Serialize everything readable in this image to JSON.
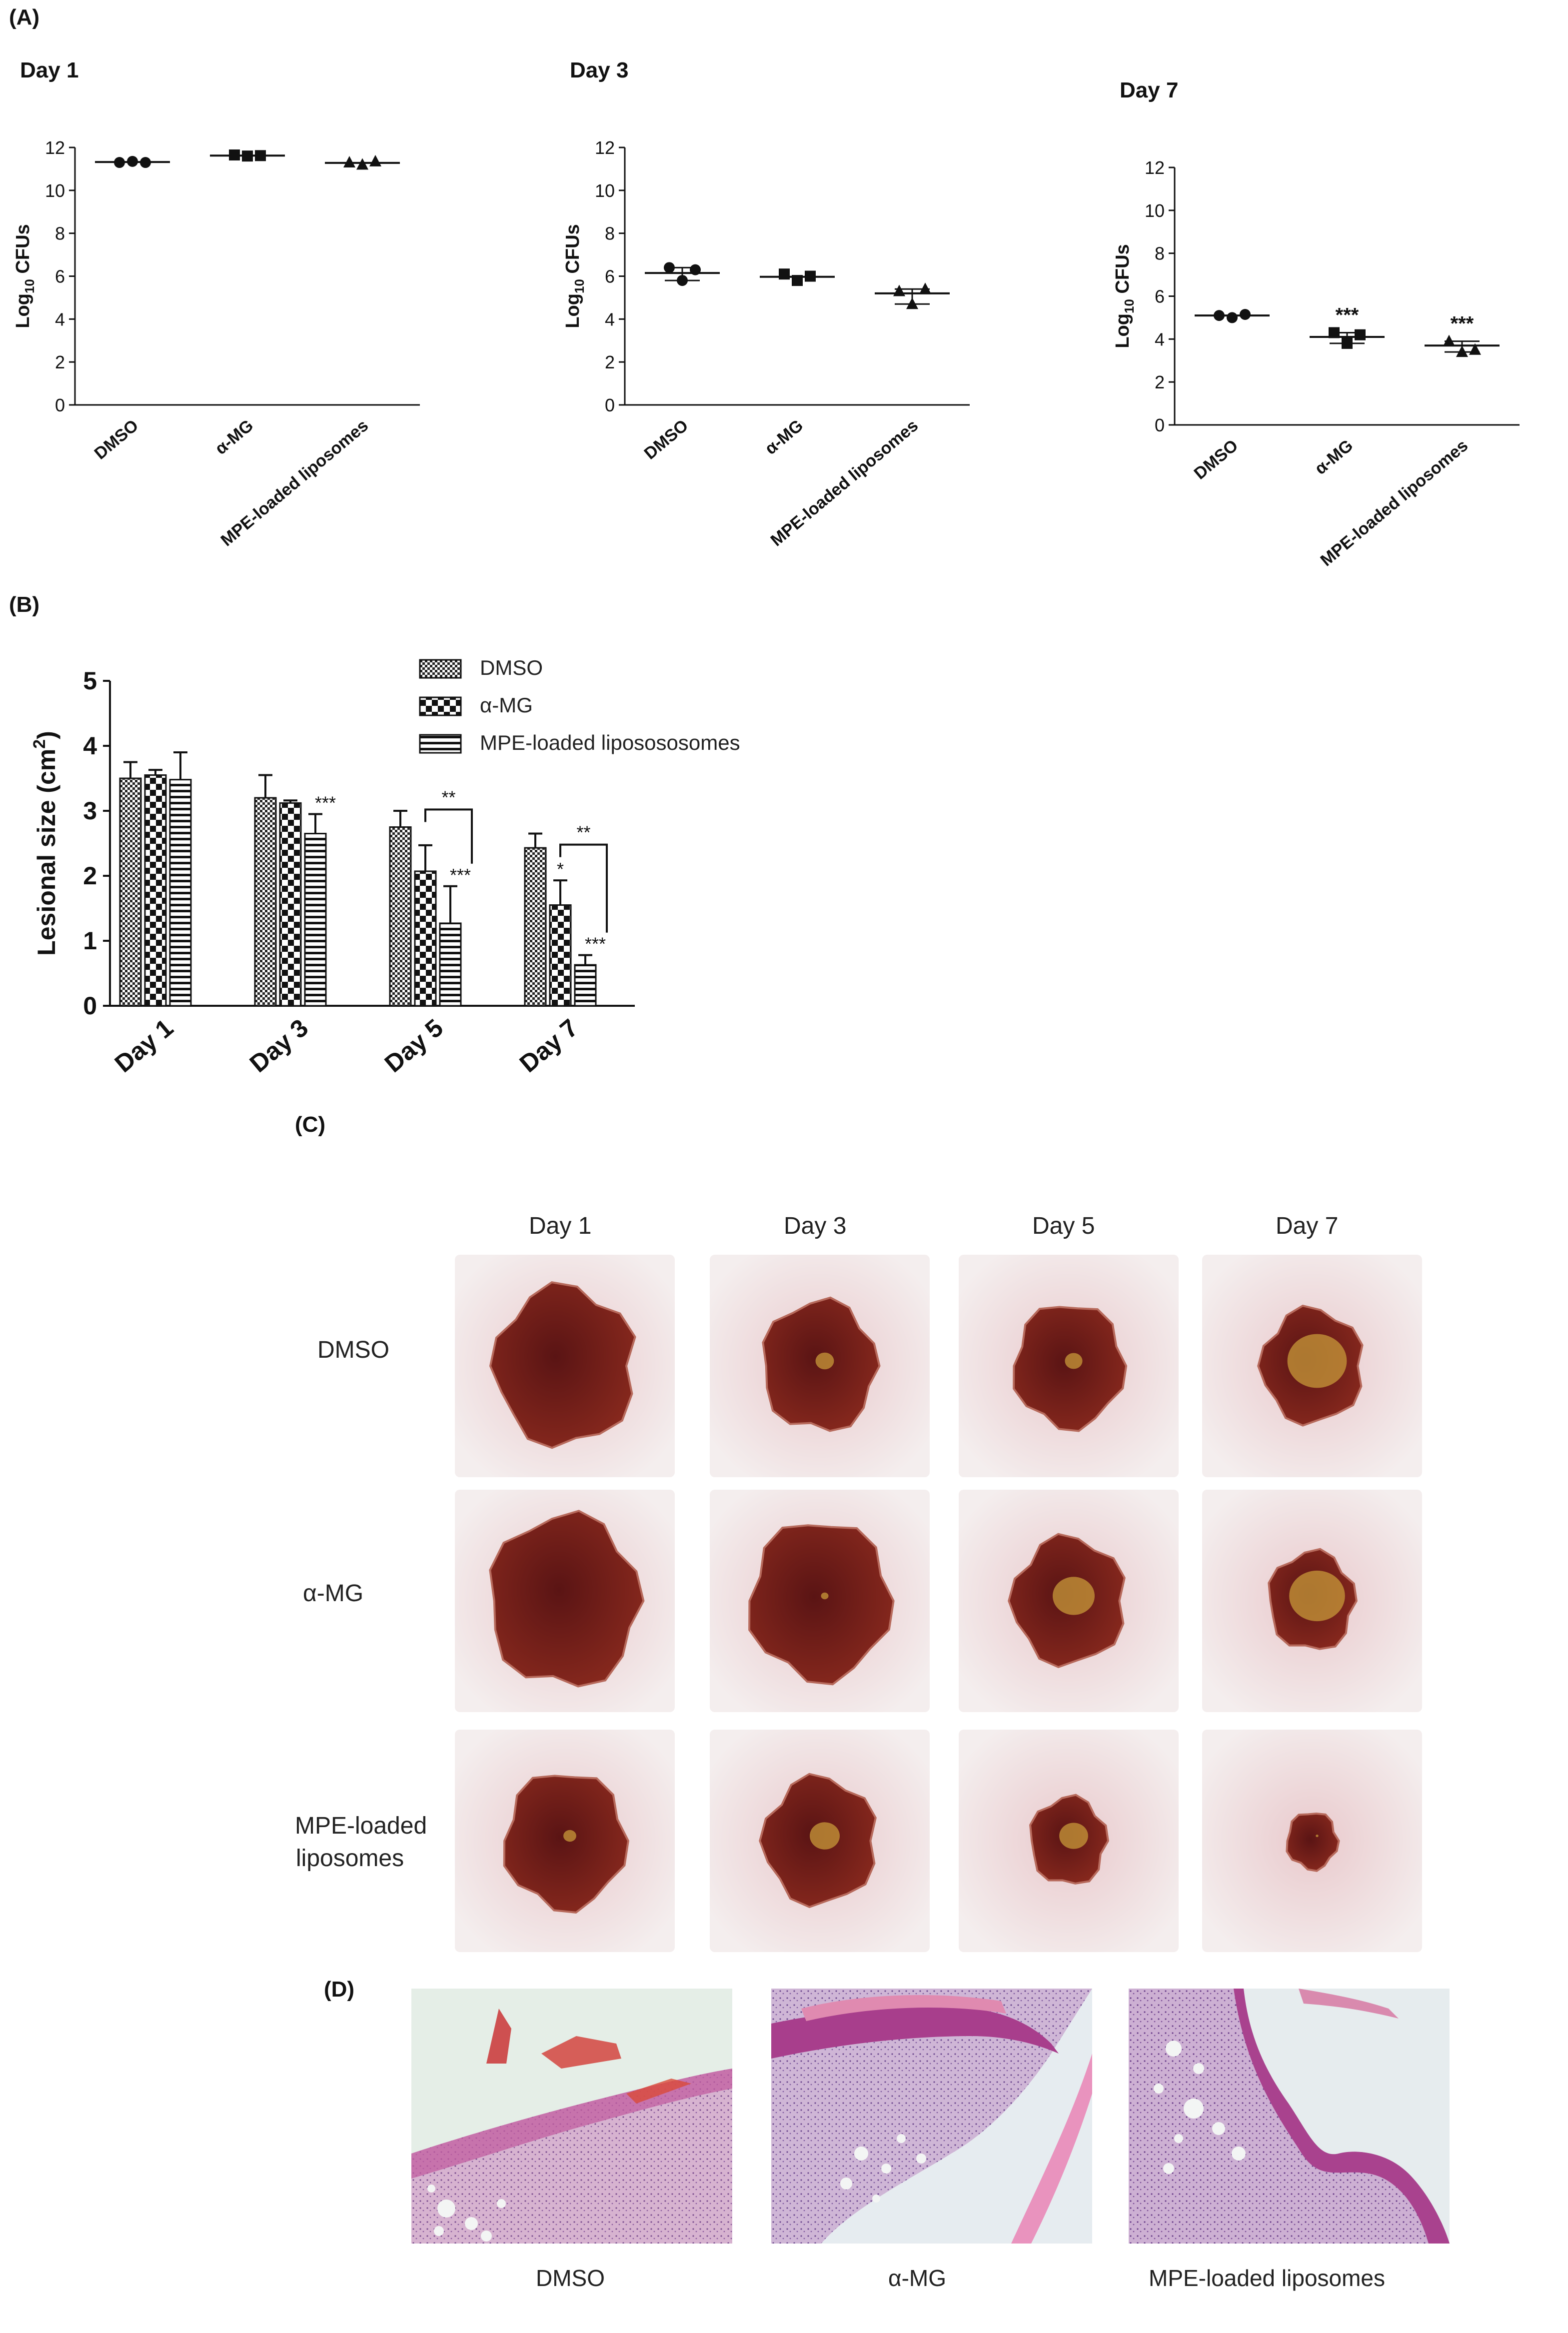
{
  "panels": {
    "a_label": "(A)",
    "b_label": "(B)",
    "c_label": "(C)",
    "d_label": "(D)"
  },
  "chart_data": [
    {
      "type": "scatter",
      "title": "Day 1",
      "xlabel": "",
      "ylabel_main": "Log",
      "ylabel_sub": "10",
      "ylabel_tail": " CFUs",
      "categories": [
        "DMSO",
        "α-MG",
        "MPE-loaded liposomes"
      ],
      "markers": [
        "circle",
        "square",
        "triangle"
      ],
      "series": [
        {
          "name": "DMSO",
          "points": [
            11.3,
            11.35,
            11.3
          ],
          "mean": 11.32
        },
        {
          "name": "α-MG",
          "points": [
            11.65,
            11.6,
            11.62
          ],
          "mean": 11.62
        },
        {
          "name": "MPE-loaded liposomes",
          "points": [
            11.3,
            11.2,
            11.35
          ],
          "mean": 11.28
        }
      ],
      "significance": [
        "",
        "",
        ""
      ],
      "ylim": [
        0,
        12
      ],
      "yticks": [
        0,
        2,
        4,
        6,
        8,
        10,
        12
      ]
    },
    {
      "type": "scatter",
      "title": "Day 3",
      "xlabel": "",
      "ylabel_main": "Log",
      "ylabel_sub": "10",
      "ylabel_tail": " CFUs",
      "categories": [
        "DMSO",
        "α-MG",
        "MPE-loaded liposomes"
      ],
      "markers": [
        "circle",
        "square",
        "triangle"
      ],
      "series": [
        {
          "name": "DMSO",
          "points": [
            6.4,
            5.8,
            6.3
          ],
          "mean": 6.15
        },
        {
          "name": "α-MG",
          "points": [
            6.1,
            5.8,
            6.0
          ],
          "mean": 5.97
        },
        {
          "name": "MPE-loaded liposomes",
          "points": [
            5.3,
            4.7,
            5.4
          ],
          "mean": 5.2
        }
      ],
      "significance": [
        "",
        "",
        ""
      ],
      "ylim": [
        0,
        12
      ],
      "yticks": [
        0,
        2,
        4,
        6,
        8,
        10,
        12
      ]
    },
    {
      "type": "scatter",
      "title": "Day 7",
      "xlabel": "",
      "ylabel_main": "Log",
      "ylabel_sub": "10",
      "ylabel_tail": " CFUs",
      "categories": [
        "DMSO",
        "α-MG",
        "MPE-loaded liposomes"
      ],
      "markers": [
        "circle",
        "square",
        "triangle"
      ],
      "series": [
        {
          "name": "DMSO",
          "points": [
            5.1,
            5.0,
            5.15
          ],
          "mean": 5.1
        },
        {
          "name": "α-MG",
          "points": [
            4.3,
            3.8,
            4.2
          ],
          "mean": 4.1
        },
        {
          "name": "MPE-loaded liposomes",
          "points": [
            3.9,
            3.4,
            3.5
          ],
          "mean": 3.7
        }
      ],
      "significance": [
        "",
        "***",
        "***"
      ],
      "ylim": [
        0,
        12
      ],
      "yticks": [
        0,
        2,
        4,
        6,
        8,
        10,
        12
      ]
    },
    {
      "type": "bar",
      "title": "",
      "xlabel": "",
      "ylabel": "Lesional size (cm",
      "ylabel_sup": "2",
      "ylabel_close": ")",
      "categories": [
        "Day 1",
        "Day 3",
        "Day 5",
        "Day 7"
      ],
      "series": [
        {
          "name": "DMSO",
          "values": [
            3.5,
            3.2,
            2.75,
            2.43
          ],
          "errors": [
            0.25,
            0.35,
            0.25,
            0.22
          ],
          "pattern": "checker"
        },
        {
          "name": "α-MG",
          "values": [
            3.55,
            3.12,
            2.07,
            1.55
          ],
          "errors": [
            0.08,
            0.04,
            0.4,
            0.38
          ],
          "pattern": "bigchecker"
        },
        {
          "name": "MPE-loaded liposososomes",
          "values": [
            3.48,
            2.65,
            1.27,
            0.63
          ],
          "errors": [
            0.42,
            0.3,
            0.57,
            0.15
          ],
          "pattern": "hstripe"
        }
      ],
      "bar_labels": [
        [
          "",
          "",
          ""
        ],
        [
          "",
          "",
          "***"
        ],
        [
          "",
          "",
          "***"
        ],
        [
          "",
          "*",
          "***"
        ]
      ],
      "brackets": [
        {
          "category_index": 2,
          "label": "**"
        },
        {
          "category_index": 3,
          "label": "**"
        }
      ],
      "ylim": [
        0,
        5
      ],
      "yticks": [
        0,
        1,
        2,
        3,
        4,
        5
      ],
      "legend_position": "top-right"
    }
  ],
  "photo_grid": {
    "columns": [
      "Day 1",
      "Day 3",
      "Day 5",
      "Day 7"
    ],
    "rows": [
      {
        "label_line1": "DMSO",
        "label_line2": ""
      },
      {
        "label_line1": "α-MG",
        "label_line2": ""
      },
      {
        "label_line1": "MPE-loaded",
        "label_line2": "liposomes"
      }
    ]
  },
  "histology": {
    "captions": [
      "DMSO",
      "α-MG",
      "MPE-loaded liposomes"
    ]
  },
  "colors": {
    "wound_dark": "#5a1414",
    "wound_mid": "#8b2a1e",
    "skin_pink": "#e9c9cc",
    "fur_white": "#f4eeee",
    "scab_yellow": "#c89a3a",
    "histo_bg": "#e7efe9",
    "histo_epidermis": "#b0418a",
    "histo_dermis": "#c9a9cc"
  }
}
